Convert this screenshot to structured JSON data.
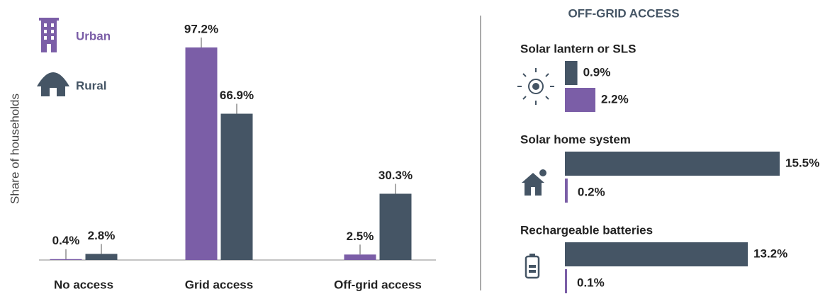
{
  "chart_data": [
    {
      "type": "bar",
      "y_label": "Share of households",
      "categories": [
        "No access",
        "Grid access",
        "Off-grid access"
      ],
      "series": [
        {
          "name": "Urban",
          "color": "#7b5ea7",
          "values": [
            0.4,
            97.2,
            2.5
          ],
          "value_labels": [
            "0.4%",
            "97.2%",
            "2.5%"
          ]
        },
        {
          "name": "Rural",
          "color": "#455565",
          "values": [
            2.8,
            66.9,
            30.3
          ],
          "value_labels": [
            "2.8%",
            "66.9%",
            "30.3%"
          ]
        }
      ]
    },
    {
      "type": "hbar",
      "title": "OFF-GRID ACCESS",
      "categories": [
        "Solar lantern or SLS",
        "Solar home system",
        "Rechargeable batteries"
      ],
      "series": [
        {
          "name": "Rural",
          "color": "#455565",
          "values": [
            0.9,
            15.5,
            13.2
          ],
          "value_labels": [
            "0.9%",
            "15.5%",
            "13.2%"
          ]
        },
        {
          "name": "Urban",
          "color": "#7b5ea7",
          "values": [
            2.2,
            0.2,
            0.1
          ],
          "value_labels": [
            "2.2%",
            "0.2%",
            "0.1%"
          ]
        }
      ]
    }
  ]
}
